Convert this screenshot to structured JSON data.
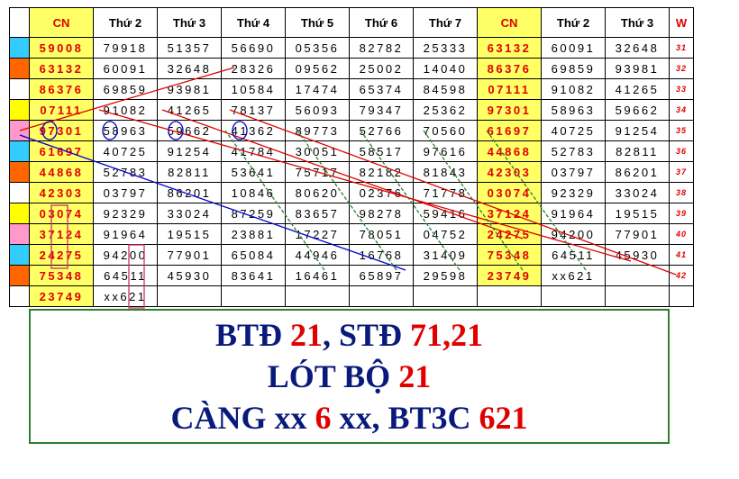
{
  "table": {
    "header": [
      "CN",
      "Thứ 2",
      "Thứ 3",
      "Thứ 4",
      "Thứ 5",
      "Thứ 6",
      "Thứ 7",
      "CN",
      "Thứ 2",
      "Thứ 3",
      "W"
    ],
    "highlight_columns": [
      0,
      7
    ],
    "row_colors": [
      "#33ccff",
      "#ff6600",
      "#ffffff",
      "#ffff00",
      "#ff99cc",
      "#33ccff",
      "#ff6600",
      "#ffffff",
      "#ffff00",
      "#ff99cc",
      "#33ccff",
      "#ff6600",
      "#ffffff"
    ],
    "rows": [
      {
        "cells": [
          "59008",
          "79918",
          "51357",
          "56690",
          "05356",
          "82782",
          "25333",
          "63132",
          "60091",
          "32648"
        ],
        "w": "31"
      },
      {
        "cells": [
          "63132",
          "60091",
          "32648",
          "28326",
          "09562",
          "25002",
          "14040",
          "86376",
          "69859",
          "93981"
        ],
        "w": "32"
      },
      {
        "cells": [
          "86376",
          "69859",
          "93981",
          "10584",
          "17474",
          "65374",
          "84598",
          "07111",
          "91082",
          "41265"
        ],
        "w": "33"
      },
      {
        "cells": [
          "07111",
          "91082",
          "41265",
          "78137",
          "56093",
          "79347",
          "25362",
          "97301",
          "58963",
          "59662"
        ],
        "w": "34"
      },
      {
        "cells": [
          "97301",
          "58963",
          "59662",
          "41362",
          "89773",
          "52766",
          "70560",
          "61697",
          "40725",
          "91254"
        ],
        "w": "35"
      },
      {
        "cells": [
          "61697",
          "40725",
          "91254",
          "41784",
          "30051",
          "58517",
          "97616",
          "44868",
          "52783",
          "82811"
        ],
        "w": "36"
      },
      {
        "cells": [
          "44868",
          "52783",
          "82811",
          "53641",
          "75717",
          "82182",
          "81843",
          "42303",
          "03797",
          "86201"
        ],
        "w": "37"
      },
      {
        "cells": [
          "42303",
          "03797",
          "86201",
          "10846",
          "80620",
          "02376",
          "71778",
          "03074",
          "92329",
          "33024"
        ],
        "w": "38"
      },
      {
        "cells": [
          "03074",
          "92329",
          "33024",
          "87259",
          "83657",
          "98278",
          "59416",
          "37124",
          "91964",
          "19515"
        ],
        "w": "39"
      },
      {
        "cells": [
          "37124",
          "91964",
          "19515",
          "23881",
          "17227",
          "78051",
          "04752",
          "24275",
          "94200",
          "77901"
        ],
        "w": "40"
      },
      {
        "cells": [
          "24275",
          "94200",
          "77901",
          "65084",
          "44946",
          "16768",
          "31409",
          "75348",
          "64511",
          "45930"
        ],
        "w": "41"
      },
      {
        "cells": [
          "75348",
          "64511",
          "45930",
          "83641",
          "16461",
          "65897",
          "29598",
          "23749",
          "xx621",
          null
        ],
        "w": "42"
      },
      {
        "cells": [
          "23749",
          "xx621",
          null,
          null,
          null,
          null,
          null,
          null,
          null,
          null
        ],
        "w": null
      }
    ]
  },
  "box": {
    "lines": [
      [
        "BTĐ ",
        "21",
        ", STĐ ",
        "71,21"
      ],
      [
        "LÓT BỘ ",
        "21"
      ],
      [
        "CÀNG xx ",
        "6",
        " xx, BT3C ",
        "621"
      ]
    ]
  }
}
